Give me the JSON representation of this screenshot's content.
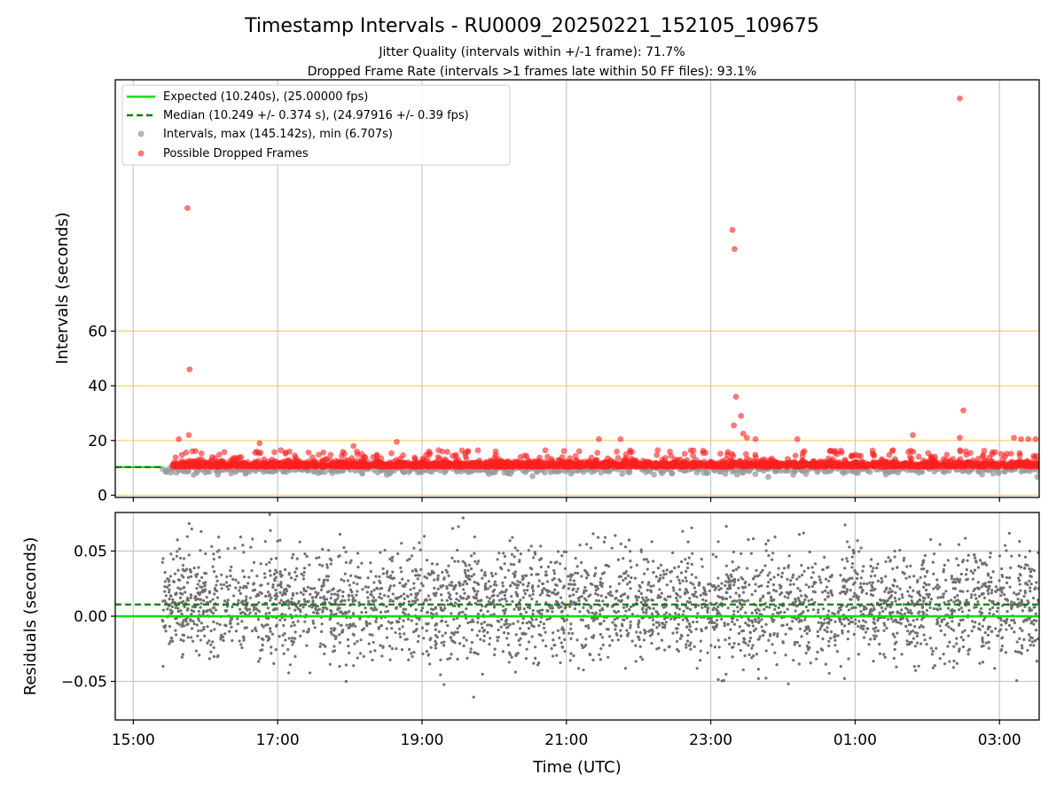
{
  "figure": {
    "title": "Timestamp Intervals - RU0009_20250221_152105_109675",
    "subtitle_1": "Jitter Quality (intervals within +/-1 frame): 71.7%",
    "subtitle_2": "Dropped Frame Rate (intervals >1 frames late within 50 FF files): 93.1%"
  },
  "colors": {
    "expected": "#00e000",
    "median": "#008000",
    "intervals": "#9a9a9a",
    "dropped": "#ff2020",
    "residuals": "#707070",
    "threshold_lines": "#f5c842",
    "grid": "#c8c8c8"
  },
  "chart_data": [
    {
      "type": "scatter",
      "panel": "top",
      "ylabel": "Intervals (seconds)",
      "xlabel": "",
      "x_range_hours": [
        14.75,
        27.55
      ],
      "ylim": [
        -1,
        151
      ],
      "y_ticks": [
        0,
        20,
        40,
        60
      ],
      "y_tick_labels": [
        "0",
        "20",
        "40",
        "60"
      ],
      "horizontal_lines": [
        0,
        20,
        40,
        60
      ],
      "grid": "vertical",
      "legend_position": "upper-left",
      "legend": [
        {
          "label": "Expected (10.240s), (25.00000 fps)",
          "kind": "line-solid",
          "color_key": "expected"
        },
        {
          "label": "Median (10.249 +/- 0.374 s), (24.97916 +/- 0.39 fps)",
          "kind": "line-dashed",
          "color_key": "median"
        },
        {
          "label": "Intervals, max (145.142s), min (6.707s)",
          "kind": "marker",
          "color_key": "intervals"
        },
        {
          "label": "Possible Dropped Frames",
          "kind": "marker",
          "color_key": "dropped"
        }
      ],
      "expected_interval": 10.24,
      "median_interval": 10.249,
      "dropped_outliers": [
        {
          "x": 15.75,
          "y": 105
        },
        {
          "x": 15.78,
          "y": 46
        },
        {
          "x": 15.77,
          "y": 22
        },
        {
          "x": 15.63,
          "y": 20.5
        },
        {
          "x": 16.75,
          "y": 19
        },
        {
          "x": 18.65,
          "y": 19.5
        },
        {
          "x": 18.05,
          "y": 18
        },
        {
          "x": 21.45,
          "y": 20.5
        },
        {
          "x": 21.75,
          "y": 20.5
        },
        {
          "x": 23.3,
          "y": 97
        },
        {
          "x": 23.33,
          "y": 90
        },
        {
          "x": 23.35,
          "y": 36
        },
        {
          "x": 23.42,
          "y": 29
        },
        {
          "x": 23.32,
          "y": 25.5
        },
        {
          "x": 23.45,
          "y": 22.5
        },
        {
          "x": 23.5,
          "y": 21
        },
        {
          "x": 23.62,
          "y": 20.5
        },
        {
          "x": 24.2,
          "y": 20.5
        },
        {
          "x": 25.8,
          "y": 22
        },
        {
          "x": 26.45,
          "y": 145.1
        },
        {
          "x": 26.5,
          "y": 31
        },
        {
          "x": 26.45,
          "y": 21
        },
        {
          "x": 27.2,
          "y": 21
        },
        {
          "x": 27.3,
          "y": 20.5
        },
        {
          "x": 27.4,
          "y": 20.5
        },
        {
          "x": 27.5,
          "y": 20.5
        }
      ],
      "bulk_x_range_hours": [
        15.4,
        27.55
      ],
      "bulk_value_range": [
        6.707,
        19.0
      ]
    },
    {
      "type": "scatter",
      "panel": "bottom",
      "ylabel": "Residuals (seconds)",
      "xlabel": "Time (UTC)",
      "x_range_hours": [
        14.75,
        27.55
      ],
      "ylim": [
        -0.08,
        0.08
      ],
      "y_ticks": [
        -0.05,
        0.0,
        0.05
      ],
      "y_tick_labels": [
        "−0.05",
        "0.00",
        "0.05"
      ],
      "x_ticks_hours": [
        15,
        17,
        19,
        21,
        23,
        25,
        27
      ],
      "x_tick_labels": [
        "15:00",
        "17:00",
        "19:00",
        "21:00",
        "23:00",
        "01:00",
        "03:00"
      ],
      "grid": "both",
      "expected_residual": 0.0,
      "median_residual": 0.009,
      "residual_spread_sd": 0.022
    }
  ]
}
